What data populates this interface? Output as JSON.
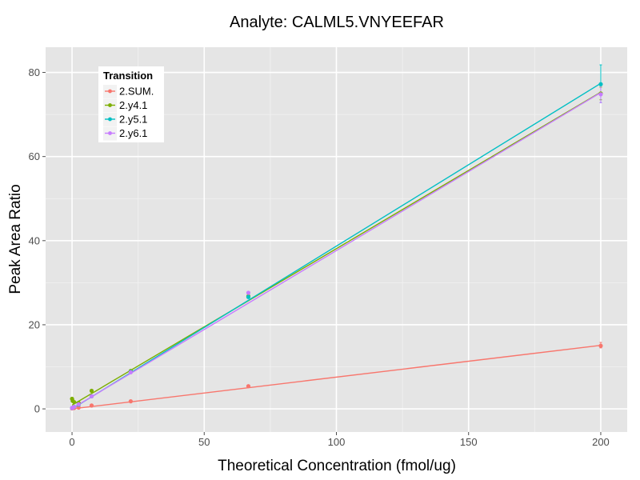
{
  "chart_data": {
    "type": "line",
    "title": "Analyte: CALML5.VNYEEFAR",
    "xlabel": "Theoretical Concentration (fmol/ug)",
    "ylabel": "Peak Area Ratio",
    "xlim": [
      -10,
      210
    ],
    "ylim": [
      -5.5,
      86
    ],
    "xticks": [
      0,
      50,
      100,
      150,
      200
    ],
    "yticks": [
      0,
      20,
      40,
      60,
      80
    ],
    "grid": true,
    "legend": {
      "title": "Transition",
      "placement": "top-left"
    },
    "series": [
      {
        "name": "2.SUM.",
        "color": "#F8766D",
        "points": [
          [
            0,
            0.1
          ],
          [
            0.25,
            0.2
          ],
          [
            0.8,
            0.2
          ],
          [
            2.5,
            0.3
          ],
          [
            7.4,
            0.8
          ],
          [
            22.2,
            1.8
          ],
          [
            66.7,
            5.4
          ],
          [
            200,
            15.0
          ]
        ],
        "line": [
          [
            0,
            0
          ],
          [
            200,
            15.1
          ]
        ],
        "errorbars": [
          [
            200,
            14.5,
            15.8
          ]
        ]
      },
      {
        "name": "2.y4.1",
        "color": "#7CAE00",
        "points": [
          [
            0,
            2.4
          ],
          [
            0.25,
            1.9
          ],
          [
            0.8,
            1.6
          ],
          [
            2.5,
            1.4
          ],
          [
            7.4,
            4.3
          ],
          [
            22.2,
            9.0
          ],
          [
            66.7,
            26.8
          ],
          [
            200,
            75.0
          ]
        ],
        "line": [
          [
            0,
            0.9
          ],
          [
            200,
            75.3
          ]
        ],
        "errorbars": [
          [
            200,
            73.5,
            76.5
          ]
        ]
      },
      {
        "name": "2.y5.1",
        "color": "#00BFC4",
        "points": [
          [
            0,
            0.2
          ],
          [
            0.25,
            0.3
          ],
          [
            0.8,
            0.5
          ],
          [
            2.5,
            1.0
          ],
          [
            7.4,
            3.0
          ],
          [
            22.2,
            8.8
          ],
          [
            66.7,
            26.6
          ],
          [
            200,
            77.2
          ]
        ],
        "line": [
          [
            0,
            0
          ],
          [
            200,
            77.4
          ]
        ],
        "errorbars": [
          [
            200,
            72.8,
            81.8
          ]
        ]
      },
      {
        "name": "2.y6.1",
        "color": "#C77CFF",
        "points": [
          [
            0,
            0.2
          ],
          [
            0.25,
            0.3
          ],
          [
            0.8,
            0.5
          ],
          [
            2.5,
            1.1
          ],
          [
            7.4,
            3.0
          ],
          [
            22.2,
            8.7
          ],
          [
            66.7,
            27.6
          ],
          [
            200,
            74.8
          ]
        ],
        "line": [
          [
            0,
            0.1
          ],
          [
            200,
            75.2
          ]
        ],
        "errorbars": [
          [
            200,
            72.8,
            77.0
          ]
        ]
      }
    ]
  }
}
